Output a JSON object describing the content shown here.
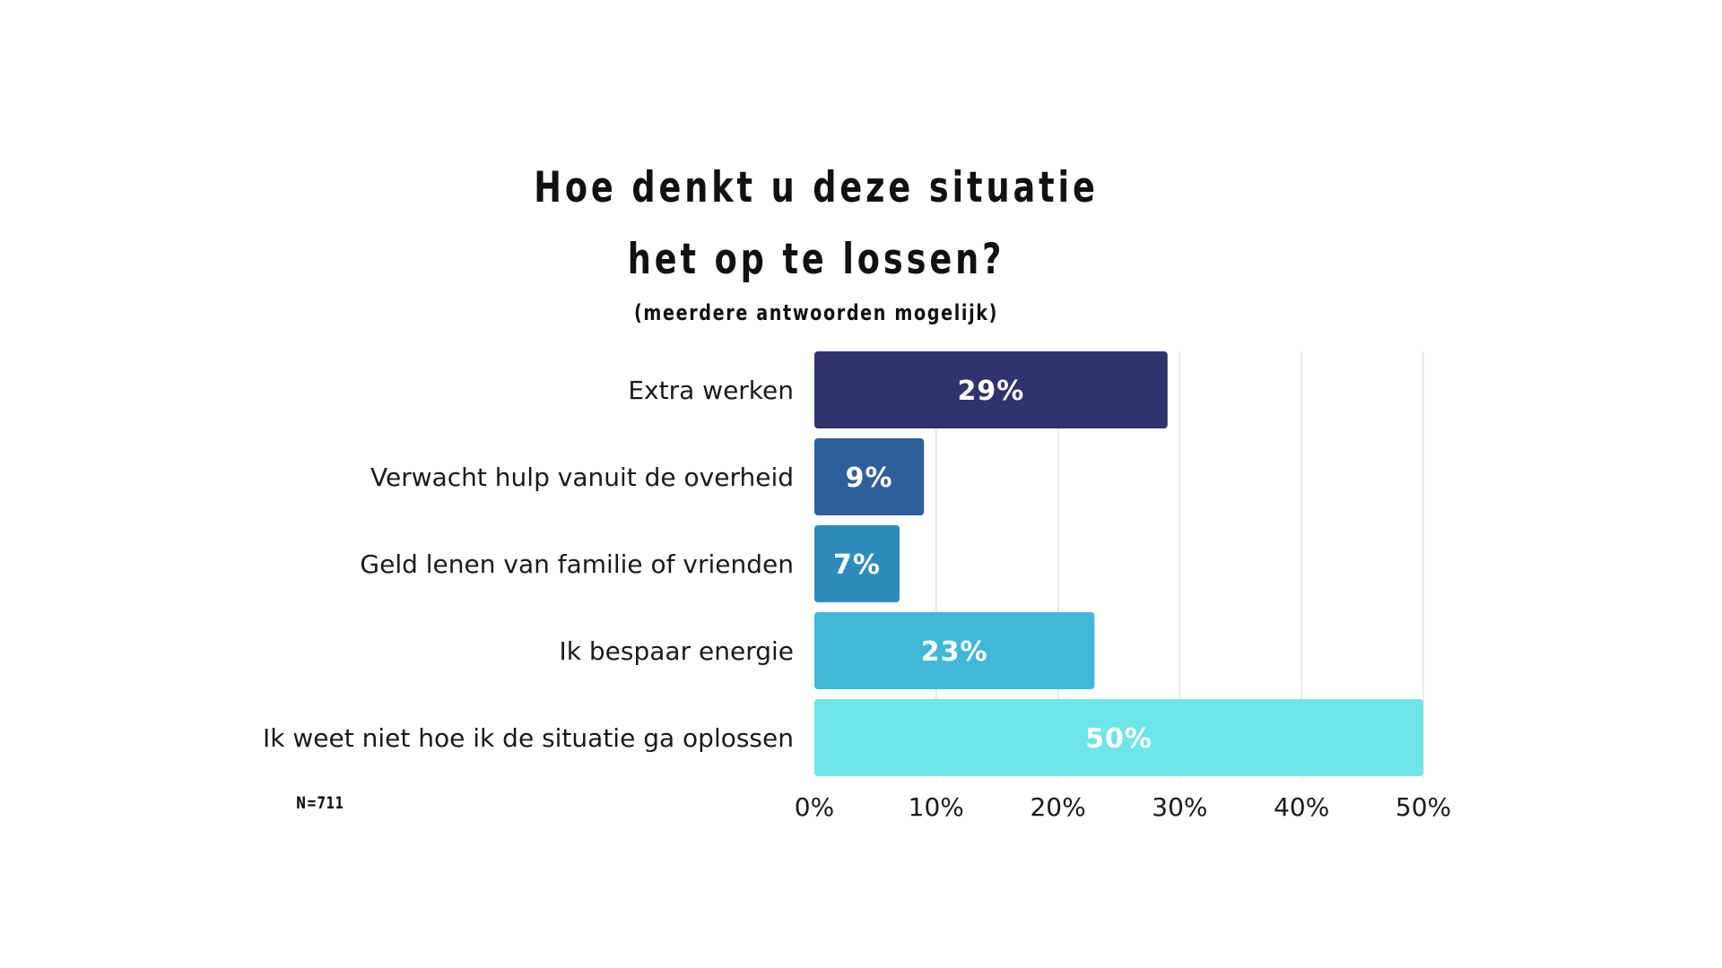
{
  "chart_data": {
    "type": "bar",
    "orientation": "horizontal",
    "title": "Hoe denkt u deze situatie het op te lossen?",
    "subtitle": "(meerdere antwoorden mogelijk)",
    "note": "N=711",
    "categories": [
      "Extra werken",
      "Verwacht hulp vanuit de overheid",
      "Geld lenen van familie of vrienden",
      "Ik bespaar energie",
      "Ik weet niet hoe ik de situatie ga oplossen"
    ],
    "values": [
      29,
      9,
      7,
      23,
      50
    ],
    "value_labels": [
      "29%",
      "9%",
      "7%",
      "23%",
      "50%"
    ],
    "colors": [
      "#31336c",
      "#2e5f9b",
      "#2d8cbd",
      "#41b8d8",
      "#6ee5e8"
    ],
    "xlim": [
      0,
      50
    ],
    "x_ticks": [
      0,
      10,
      20,
      30,
      40,
      50
    ],
    "x_tick_labels": [
      "0%",
      "10%",
      "20%",
      "30%",
      "40%",
      "50%"
    ],
    "grid": true,
    "gridline_color": "#e3e3e3"
  }
}
